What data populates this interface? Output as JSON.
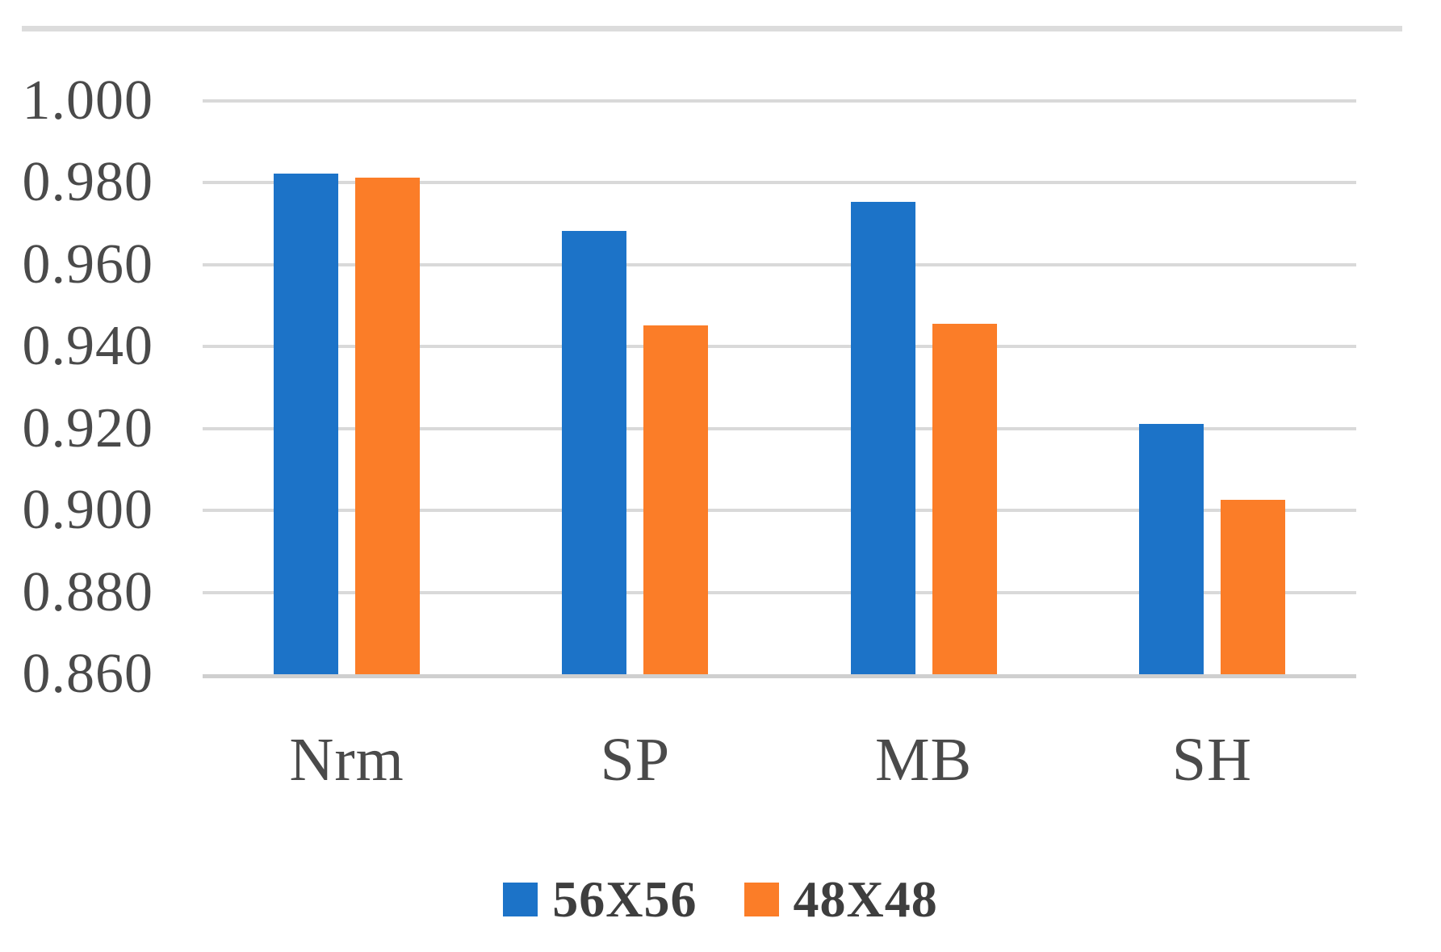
{
  "chart_data": {
    "type": "bar",
    "title": "",
    "xlabel": "",
    "ylabel": "",
    "categories": [
      "Nrm",
      "SP",
      "MB",
      "SH"
    ],
    "series": [
      {
        "name": "56X56",
        "color": "#1C73C8",
        "values": [
          0.9823,
          0.9682,
          0.9753,
          0.9211
        ]
      },
      {
        "name": "48X48",
        "color": "#FB7D28",
        "values": [
          0.9813,
          0.9452,
          0.9456,
          0.9025
        ]
      }
    ],
    "ylim": [
      0.86,
      1.0
    ],
    "ytick_step": 0.02,
    "yticks": [
      "1.000",
      "0.980",
      "0.960",
      "0.940",
      "0.920",
      "0.900",
      "0.880",
      "0.860"
    ],
    "grid": true,
    "legend_position": "bottom",
    "colors": {
      "gridline": "#D9D9D9",
      "baseline": "#CFCFCF",
      "axis_text": "#4A4A4A",
      "legend_text": "#3E3E3E",
      "top_border": "#DCDCDC",
      "background": "#FFFFFF"
    }
  }
}
